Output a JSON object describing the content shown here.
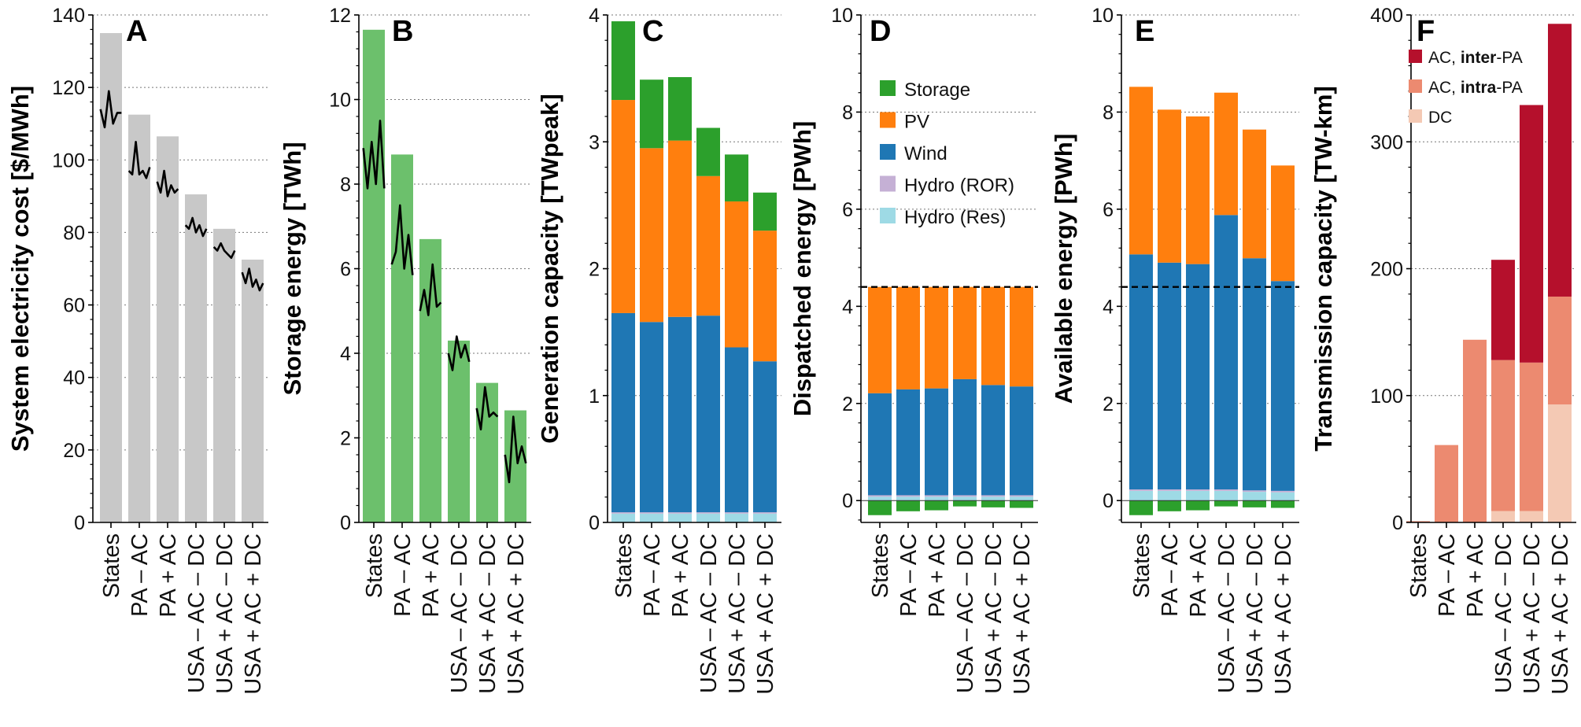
{
  "categories": [
    "States",
    "PA – AC",
    "PA + AC",
    "USA – AC – DC",
    "USA + AC – DC",
    "USA + AC + DC"
  ],
  "colors": {
    "grey": "#c8c8c8",
    "lightgreen": "#6cc06c",
    "storage": "#2ca02c",
    "pv": "#ff7f0e",
    "wind": "#1f77b4",
    "hydro_ror": "#c5b0d5",
    "hydro_res": "#9edae5",
    "ac_inter": "#b5102c",
    "ac_intra": "#ec8a70",
    "dc": "#f4c9b4"
  },
  "chart_data": [
    {
      "id": "A",
      "letter": "A",
      "type": "bar",
      "ylabel": "System electricity cost [$/MWh]",
      "ylim": [
        0,
        140
      ],
      "yticks": [
        0,
        20,
        40,
        60,
        80,
        100,
        120,
        140
      ],
      "grid": true,
      "categories": [
        "States",
        "PA – AC",
        "PA + AC",
        "USA – AC – DC",
        "USA + AC – DC",
        "USA + AC + DC"
      ],
      "values": [
        135,
        112.5,
        106.5,
        90.5,
        81,
        72.5
      ],
      "variability": [
        [
          114,
          109,
          119,
          110,
          113,
          113
        ],
        [
          97,
          96,
          105,
          96,
          97,
          95,
          98
        ],
        [
          94,
          91,
          97,
          90,
          93,
          91,
          92
        ],
        [
          82,
          81,
          84,
          80,
          82,
          79,
          81
        ],
        [
          76,
          75,
          77,
          75,
          74,
          73,
          75
        ],
        [
          69,
          66,
          70,
          65,
          67,
          64,
          66
        ]
      ]
    },
    {
      "id": "B",
      "letter": "B",
      "type": "bar",
      "ylabel": "Storage energy [TWh]",
      "ylim": [
        0,
        12
      ],
      "yticks": [
        0,
        2,
        4,
        6,
        8,
        10,
        12
      ],
      "grid": true,
      "categories": [
        "States",
        "PA – AC",
        "PA + AC",
        "USA – AC – DC",
        "USA + AC – DC",
        "USA + AC + DC"
      ],
      "values": [
        11.65,
        8.7,
        6.7,
        4.3,
        3.3,
        2.65
      ],
      "variability": [
        [
          8.85,
          7.9,
          9.0,
          8.0,
          9.5,
          7.9
        ],
        [
          6.1,
          6.4,
          7.5,
          6.0,
          6.8,
          5.85
        ],
        [
          5.0,
          5.5,
          4.9,
          6.1,
          5.1,
          5.2
        ],
        [
          4.0,
          3.6,
          4.4,
          3.9,
          4.2,
          3.8
        ],
        [
          2.7,
          2.2,
          3.2,
          2.5,
          2.6,
          2.5
        ],
        [
          1.6,
          0.95,
          2.5,
          1.4,
          1.8,
          1.4
        ]
      ]
    },
    {
      "id": "C",
      "letter": "C",
      "type": "stacked-bar",
      "ylabel": "Generation capacity [TWpeak]",
      "ylim": [
        0,
        4
      ],
      "yticks": [
        0,
        1,
        2,
        3,
        4
      ],
      "grid": true,
      "categories": [
        "States",
        "PA – AC",
        "PA + AC",
        "USA – AC – DC",
        "USA + AC – DC",
        "USA + AC + DC"
      ],
      "series": [
        {
          "name": "Hydro (Res)",
          "color_key": "hydro_res",
          "values": [
            0.07,
            0.07,
            0.07,
            0.07,
            0.07,
            0.07
          ]
        },
        {
          "name": "Hydro (ROR)",
          "color_key": "hydro_ror",
          "values": [
            0.01,
            0.01,
            0.01,
            0.01,
            0.01,
            0.01
          ]
        },
        {
          "name": "Wind",
          "color_key": "wind",
          "values": [
            1.57,
            1.5,
            1.54,
            1.55,
            1.3,
            1.19
          ]
        },
        {
          "name": "PV",
          "color_key": "pv",
          "values": [
            1.68,
            1.37,
            1.39,
            1.1,
            1.15,
            1.03
          ]
        },
        {
          "name": "Storage",
          "color_key": "storage",
          "values": [
            0.62,
            0.54,
            0.5,
            0.38,
            0.37,
            0.3
          ]
        }
      ]
    },
    {
      "id": "D",
      "letter": "D",
      "type": "stacked-bar",
      "ylabel": "Dispatched energy [PWh]",
      "ylim": [
        -0.45,
        10
      ],
      "yticks": [
        0,
        2,
        4,
        6,
        8,
        10
      ],
      "grid": true,
      "reference_line": 4.4,
      "categories": [
        "States",
        "PA – AC",
        "PA + AC",
        "USA – AC – DC",
        "USA + AC – DC",
        "USA + AC + DC"
      ],
      "negative": [
        {
          "name": "Storage",
          "color_key": "storage",
          "values": [
            -0.3,
            -0.22,
            -0.2,
            -0.12,
            -0.14,
            -0.15
          ]
        }
      ],
      "series": [
        {
          "name": "Hydro (Res)",
          "color_key": "hydro_res",
          "values": [
            0.08,
            0.08,
            0.08,
            0.08,
            0.08,
            0.08
          ]
        },
        {
          "name": "Hydro (ROR)",
          "color_key": "hydro_ror",
          "values": [
            0.03,
            0.03,
            0.03,
            0.03,
            0.03,
            0.03
          ]
        },
        {
          "name": "Wind",
          "color_key": "wind",
          "values": [
            2.1,
            2.18,
            2.2,
            2.39,
            2.27,
            2.24
          ]
        },
        {
          "name": "PV",
          "color_key": "pv",
          "values": [
            2.19,
            2.11,
            2.09,
            1.9,
            2.02,
            2.05
          ]
        }
      ],
      "legend": [
        {
          "label": "Storage",
          "color_key": "storage"
        },
        {
          "label": "PV",
          "color_key": "pv"
        },
        {
          "label": "Wind",
          "color_key": "wind"
        },
        {
          "label": "Hydro (ROR)",
          "color_key": "hydro_ror"
        },
        {
          "label": "Hydro (Res)",
          "color_key": "hydro_res"
        }
      ]
    },
    {
      "id": "E",
      "letter": "E",
      "type": "stacked-bar",
      "ylabel": "Available energy [PWh]",
      "ylim": [
        -0.45,
        10
      ],
      "yticks": [
        0,
        2,
        4,
        6,
        8,
        10
      ],
      "grid": true,
      "reference_line": 4.4,
      "categories": [
        "States",
        "PA – AC",
        "PA + AC",
        "USA – AC – DC",
        "USA + AC – DC",
        "USA + AC + DC"
      ],
      "negative": [
        {
          "name": "Storage",
          "color_key": "storage",
          "values": [
            -0.3,
            -0.22,
            -0.2,
            -0.12,
            -0.14,
            -0.15
          ]
        }
      ],
      "series": [
        {
          "name": "Hydro (Res)",
          "color_key": "hydro_res",
          "values": [
            0.2,
            0.2,
            0.2,
            0.2,
            0.18,
            0.17
          ]
        },
        {
          "name": "Hydro (ROR)",
          "color_key": "hydro_ror",
          "values": [
            0.03,
            0.03,
            0.03,
            0.03,
            0.03,
            0.03
          ]
        },
        {
          "name": "Wind",
          "color_key": "wind",
          "values": [
            4.84,
            4.67,
            4.64,
            5.65,
            4.78,
            4.32
          ]
        },
        {
          "name": "PV",
          "color_key": "pv",
          "values": [
            3.45,
            3.15,
            3.04,
            2.52,
            2.65,
            2.38
          ]
        }
      ]
    },
    {
      "id": "F",
      "letter": "F",
      "type": "stacked-bar",
      "ylabel": "Transmission capacity [TW-km]",
      "ylim": [
        0,
        400
      ],
      "yticks": [
        0,
        100,
        200,
        300,
        400
      ],
      "grid": true,
      "categories": [
        "States",
        "PA – AC",
        "PA + AC",
        "USA – AC – DC",
        "USA + AC – DC",
        "USA + AC + DC"
      ],
      "series": [
        {
          "name": "DC",
          "color_key": "dc",
          "values": [
            0,
            0,
            0,
            9,
            9,
            93
          ]
        },
        {
          "name": "AC, intra-PA",
          "color_key": "ac_intra",
          "values": [
            1,
            61,
            144,
            119,
            117,
            85
          ]
        },
        {
          "name": "AC, inter-PA",
          "color_key": "ac_inter",
          "values": [
            0,
            0,
            0,
            79,
            203,
            215
          ]
        }
      ],
      "legend": [
        {
          "label_parts": [
            "AC, ",
            "inter",
            "-PA"
          ],
          "color_key": "ac_inter"
        },
        {
          "label_parts": [
            "AC, ",
            "intra",
            "-PA"
          ],
          "color_key": "ac_intra"
        },
        {
          "label_parts": [
            "DC",
            "",
            ""
          ],
          "color_key": "dc"
        }
      ]
    }
  ]
}
